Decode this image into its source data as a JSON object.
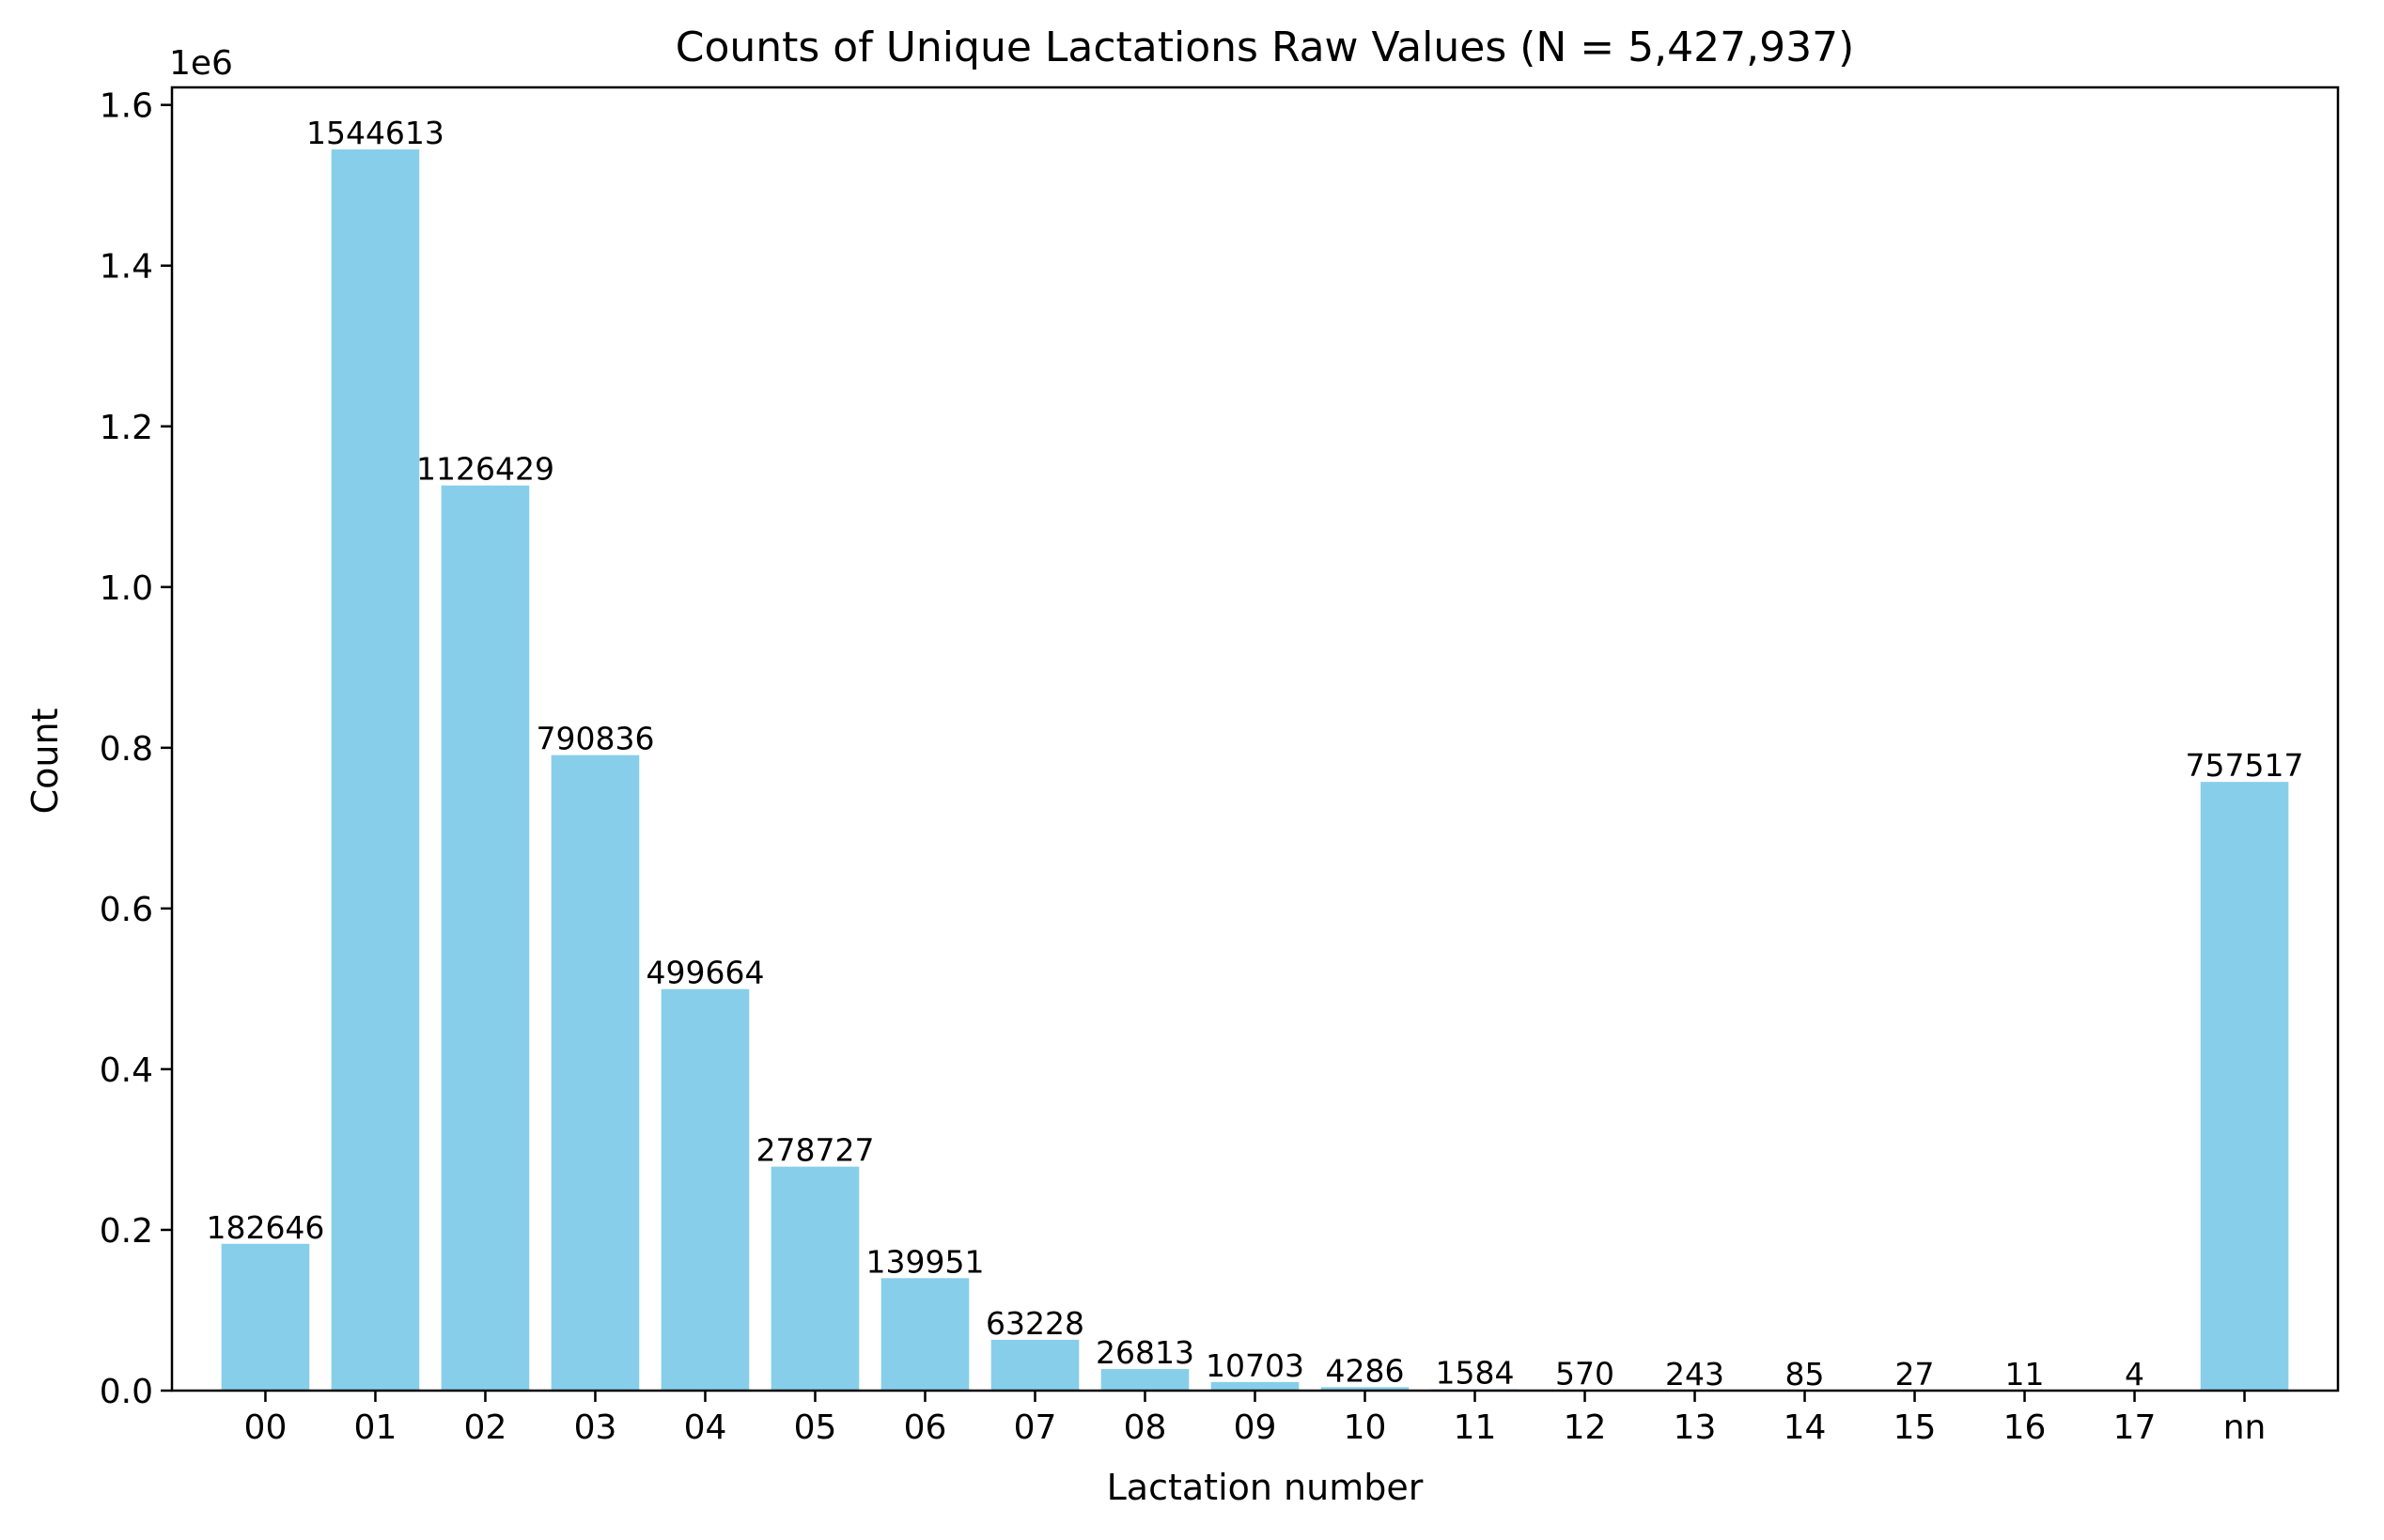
{
  "chart_data": {
    "type": "bar",
    "title": "Counts of Unique Lactations Raw Values (N = 5,427,937)",
    "xlabel": "Lactation number",
    "ylabel": "Count",
    "y_offset_label": "1e6",
    "categories": [
      "00",
      "01",
      "02",
      "03",
      "04",
      "05",
      "06",
      "07",
      "08",
      "09",
      "10",
      "11",
      "12",
      "13",
      "14",
      "15",
      "16",
      "17",
      "nn"
    ],
    "values": [
      182646,
      1544613,
      1126429,
      790836,
      499664,
      278727,
      139951,
      63228,
      26813,
      10703,
      4286,
      1584,
      570,
      243,
      85,
      27,
      11,
      4,
      757517
    ],
    "data_labels": [
      "182646",
      "1544613",
      "1126429",
      "790836",
      "499664",
      "278727",
      "139951",
      "63228",
      "26813",
      "10703",
      "4286",
      "1584",
      "570",
      "243",
      "85",
      "27",
      "11",
      "4",
      "757517"
    ],
    "yticks": [
      0.0,
      0.2,
      0.4,
      0.6,
      0.8,
      1.0,
      1.2,
      1.4,
      1.6
    ],
    "ytick_labels": [
      "0.0",
      "0.2",
      "0.4",
      "0.6",
      "0.8",
      "1.0",
      "1.2",
      "1.4",
      "1.6"
    ],
    "ytick_scale": 1000000,
    "ylim": [
      0,
      1621844
    ],
    "bar_color": "#87CEEB",
    "grid": false,
    "legend": false
  }
}
